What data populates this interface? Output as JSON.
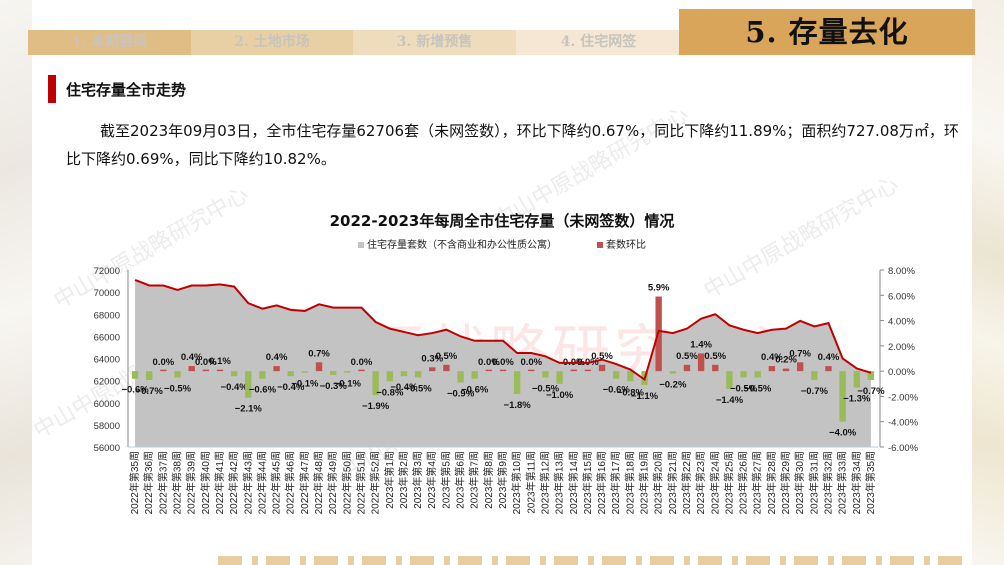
{
  "header": {
    "tabs": [
      {
        "label": "1. 本期要闻",
        "active": false
      },
      {
        "label": "2. 土地市场",
        "active": false
      },
      {
        "label": "3. 新增预售",
        "active": false
      },
      {
        "label": "4. 住宅网签",
        "active": false
      }
    ],
    "active_tab": {
      "label": "5. 存量去化",
      "active": true
    }
  },
  "section": {
    "title": "住宅存量全市走势",
    "summary": "截至2023年09月03日，全市住宅存量62706套（未网签数），环比下降约0.67%，同比下降约11.89%；面积约727.08万㎡，环比下降约0.69%，同比下降约10.82%。"
  },
  "watermark": {
    "text": "中山中原战略研究中心"
  },
  "colors": {
    "accent_gold": "#d8a55a",
    "section_red": "#c00000",
    "line_red": "#c00000",
    "area_gray": "#c3c3c3",
    "bar_positive": "#c0504d",
    "bar_negative": "#9bbb59"
  },
  "chart_data": {
    "type": "bar",
    "title": "2022-2023年每周全市住宅存量（未网签数）情况",
    "legend": [
      {
        "label": "住宅存量套数（不含商业和办公性质公寓）",
        "color": "#c3c3c3",
        "kind": "area+line"
      },
      {
        "label": "套数环比",
        "color": "#c0504d",
        "kind": "bar"
      }
    ],
    "legend_position": "top",
    "grid": false,
    "xlabel": "",
    "ylabel_left": "",
    "ylabel_right": "",
    "ylim_left": [
      56000,
      72000
    ],
    "yticks_left": [
      "72000",
      "70000",
      "68000",
      "66000",
      "64000",
      "62000",
      "60000",
      "58000",
      "56000"
    ],
    "ylim_right": [
      -6,
      8
    ],
    "yticks_right": [
      "8.00%",
      "6.00%",
      "4.00%",
      "2.00%",
      "0.00%",
      "-2.00%",
      "-4.00%",
      "-6.00%"
    ],
    "categories": [
      "2022年第35周",
      "2022年第36周",
      "2022年第37周",
      "2022年第38周",
      "2022年第39周",
      "2022年第40周",
      "2022年第41周",
      "2022年第42周",
      "2022年第43周",
      "2022年第44周",
      "2022年第45周",
      "2022年第46周",
      "2022年第47周",
      "2022年第48周",
      "2022年第49周",
      "2022年第50周",
      "2022年第51周",
      "2022年第52周",
      "2023年第1周",
      "2023年第2周",
      "2023年第3周",
      "2023年第4周",
      "2023年第5周",
      "2023年第6周",
      "2023年第7周",
      "2023年第8周",
      "2023年第9周",
      "2023年第10周",
      "2023年第11周",
      "2023年第12周",
      "2023年第13周",
      "2023年第14周",
      "2023年第15周",
      "2023年第16周",
      "2023年第17周",
      "2023年第18周",
      "2023年第19周",
      "2023年第20周",
      "2023年第21周",
      "2023年第22周",
      "2023年第23周",
      "2023年第24周",
      "2023年第25周",
      "2023年第26周",
      "2023年第27周",
      "2023年第28周",
      "2023年第29周",
      "2023年第30周",
      "2023年第31周",
      "2023年第32周",
      "2023年第33周",
      "2023年第34周",
      "2023年第35周"
    ],
    "series": [
      {
        "name": "住宅存量套数（不含商业和办公性质公寓）",
        "axis": "left",
        "type": "area",
        "values": [
          71100,
          70600,
          70600,
          70200,
          70600,
          70600,
          70700,
          70500,
          69000,
          68500,
          68800,
          68400,
          68300,
          68900,
          68600,
          68600,
          68600,
          67300,
          66700,
          66400,
          66100,
          66300,
          66600,
          66000,
          65600,
          65600,
          65600,
          64500,
          64500,
          64200,
          63600,
          63600,
          63600,
          63900,
          63500,
          63000,
          62100,
          66500,
          66300,
          66700,
          67600,
          68000,
          67000,
          66600,
          66300,
          66600,
          66700,
          67400,
          66900,
          67200,
          64000,
          63100,
          62706
        ]
      },
      {
        "name": "套数环比",
        "axis": "right",
        "type": "bar",
        "unit": "%",
        "values": [
          -0.6,
          -0.7,
          0.0,
          -0.5,
          0.4,
          0.0,
          0.1,
          -0.4,
          -2.1,
          -0.6,
          0.4,
          -0.4,
          -0.1,
          0.7,
          -0.3,
          -0.1,
          0.0,
          -1.9,
          -0.8,
          -0.4,
          -0.5,
          0.3,
          0.5,
          -0.9,
          -0.6,
          0.0,
          0.0,
          -1.8,
          0.0,
          -0.5,
          -1.0,
          0.0,
          0.0,
          0.5,
          -0.6,
          -0.8,
          -1.1,
          5.9,
          -0.2,
          0.5,
          1.4,
          0.5,
          -1.4,
          -0.5,
          -0.5,
          0.4,
          0.2,
          0.7,
          -0.7,
          0.4,
          -4.0,
          -1.3,
          -0.7
        ]
      }
    ]
  }
}
